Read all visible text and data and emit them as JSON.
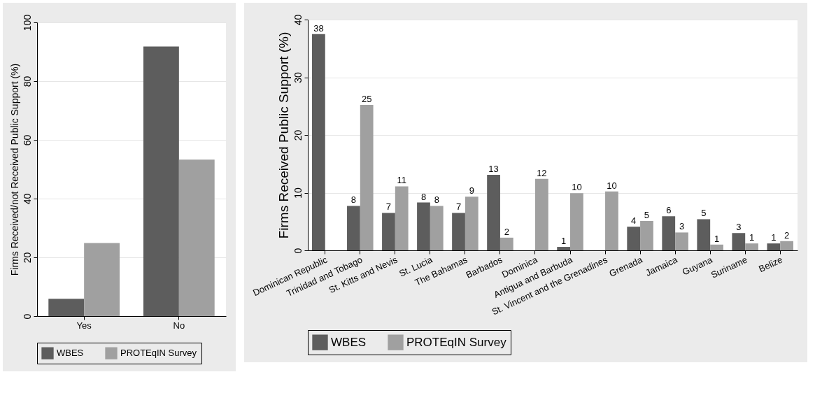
{
  "chart_data": [
    {
      "type": "bar",
      "categories": [
        "Yes",
        "No"
      ],
      "ylabel": "Firms Received/not Received Public Support (%)",
      "ylim": [
        0,
        100
      ],
      "yticks": [
        0,
        20,
        40,
        60,
        80,
        100
      ],
      "grid": "y",
      "legend": "bottom",
      "series": [
        {
          "name": "WBES",
          "color": "#5d5d5d",
          "values": [
            5.9,
            91.8
          ]
        },
        {
          "name": "PROTEqIN Survey",
          "color": "#a0a0a0",
          "values": [
            24.9,
            53.3
          ]
        }
      ]
    },
    {
      "type": "bar",
      "categories": [
        "Dominican Republic",
        "Trinidad and Tobago",
        "St. Kitts and Nevis",
        "St. Lucia",
        "The Bahamas",
        "Barbados",
        "Dominica",
        "Antigua and Barbuda",
        "St. Vincent and the Grenadines",
        "Grenada",
        "Jamaica",
        "Guyana",
        "Suriname",
        "Belize"
      ],
      "ylabel": "Firms Received Public Support (%)",
      "ylim": [
        0,
        40
      ],
      "yticks": [
        0,
        10,
        20,
        30,
        40
      ],
      "grid": "y",
      "legend": "bottom",
      "series": [
        {
          "name": "WBES",
          "color": "#5d5d5d",
          "values": [
            37.5,
            7.7,
            6.5,
            8.3,
            6.5,
            13.1,
            null,
            0.6,
            null,
            4.1,
            5.9,
            5.4,
            3.0,
            1.2
          ],
          "value_labels": [
            "38",
            "8",
            "7",
            "8",
            "7",
            "13",
            null,
            "1",
            null,
            "4",
            "6",
            "5",
            "3",
            "1"
          ]
        },
        {
          "name": "PROTEqIN Survey",
          "color": "#a0a0a0",
          "values": [
            null,
            25.2,
            11.1,
            7.7,
            9.3,
            2.2,
            12.4,
            9.9,
            10.2,
            5.1,
            3.1,
            1.0,
            1.2,
            1.6
          ],
          "value_labels": [
            null,
            "25",
            "11",
            "8",
            "9",
            "2",
            "12",
            "10",
            "10",
            "5",
            "3",
            "1",
            "1",
            "2"
          ]
        }
      ]
    }
  ]
}
